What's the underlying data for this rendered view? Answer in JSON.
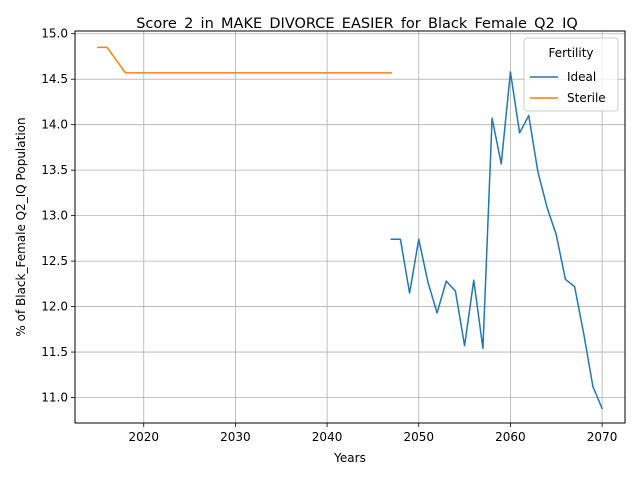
{
  "chart_data": {
    "type": "line",
    "title": "Score_2_in_MAKE_DIVORCE_EASIER_for_Black_Female_Q2_IQ",
    "xlabel": "Years",
    "ylabel": "% of Black_Female Q2_IQ Population",
    "xlim": [
      2012.5,
      2072.5
    ],
    "ylim": [
      10.72,
      15.03
    ],
    "xticks": [
      2020,
      2030,
      2040,
      2050,
      2060,
      2070
    ],
    "yticks": [
      11.0,
      11.5,
      12.0,
      12.5,
      13.0,
      13.5,
      14.0,
      14.5,
      15.0
    ],
    "grid": true,
    "legend": {
      "title": "Fertility",
      "placement": "top-right"
    },
    "series": [
      {
        "name": "Ideal",
        "color": "#1f77b4",
        "x": [
          2047,
          2048,
          2049,
          2050,
          2051,
          2052,
          2053,
          2054,
          2055,
          2056,
          2057,
          2058,
          2059,
          2060,
          2061,
          2062,
          2063,
          2064,
          2065,
          2066,
          2067,
          2068,
          2069,
          2070
        ],
        "y": [
          12.74,
          12.74,
          12.15,
          12.74,
          12.27,
          11.93,
          12.28,
          12.17,
          11.57,
          12.29,
          11.54,
          14.07,
          13.57,
          14.58,
          13.91,
          14.1,
          13.48,
          13.09,
          12.79,
          12.3,
          12.22,
          11.7,
          11.12,
          10.88
        ]
      },
      {
        "name": "Sterile",
        "color": "#ff7f0e",
        "x": [
          2015,
          2016,
          2017,
          2018,
          2020,
          2025,
          2030,
          2035,
          2040,
          2045,
          2047
        ],
        "y": [
          14.85,
          14.85,
          14.71,
          14.57,
          14.57,
          14.57,
          14.57,
          14.57,
          14.57,
          14.57,
          14.57
        ]
      }
    ]
  }
}
